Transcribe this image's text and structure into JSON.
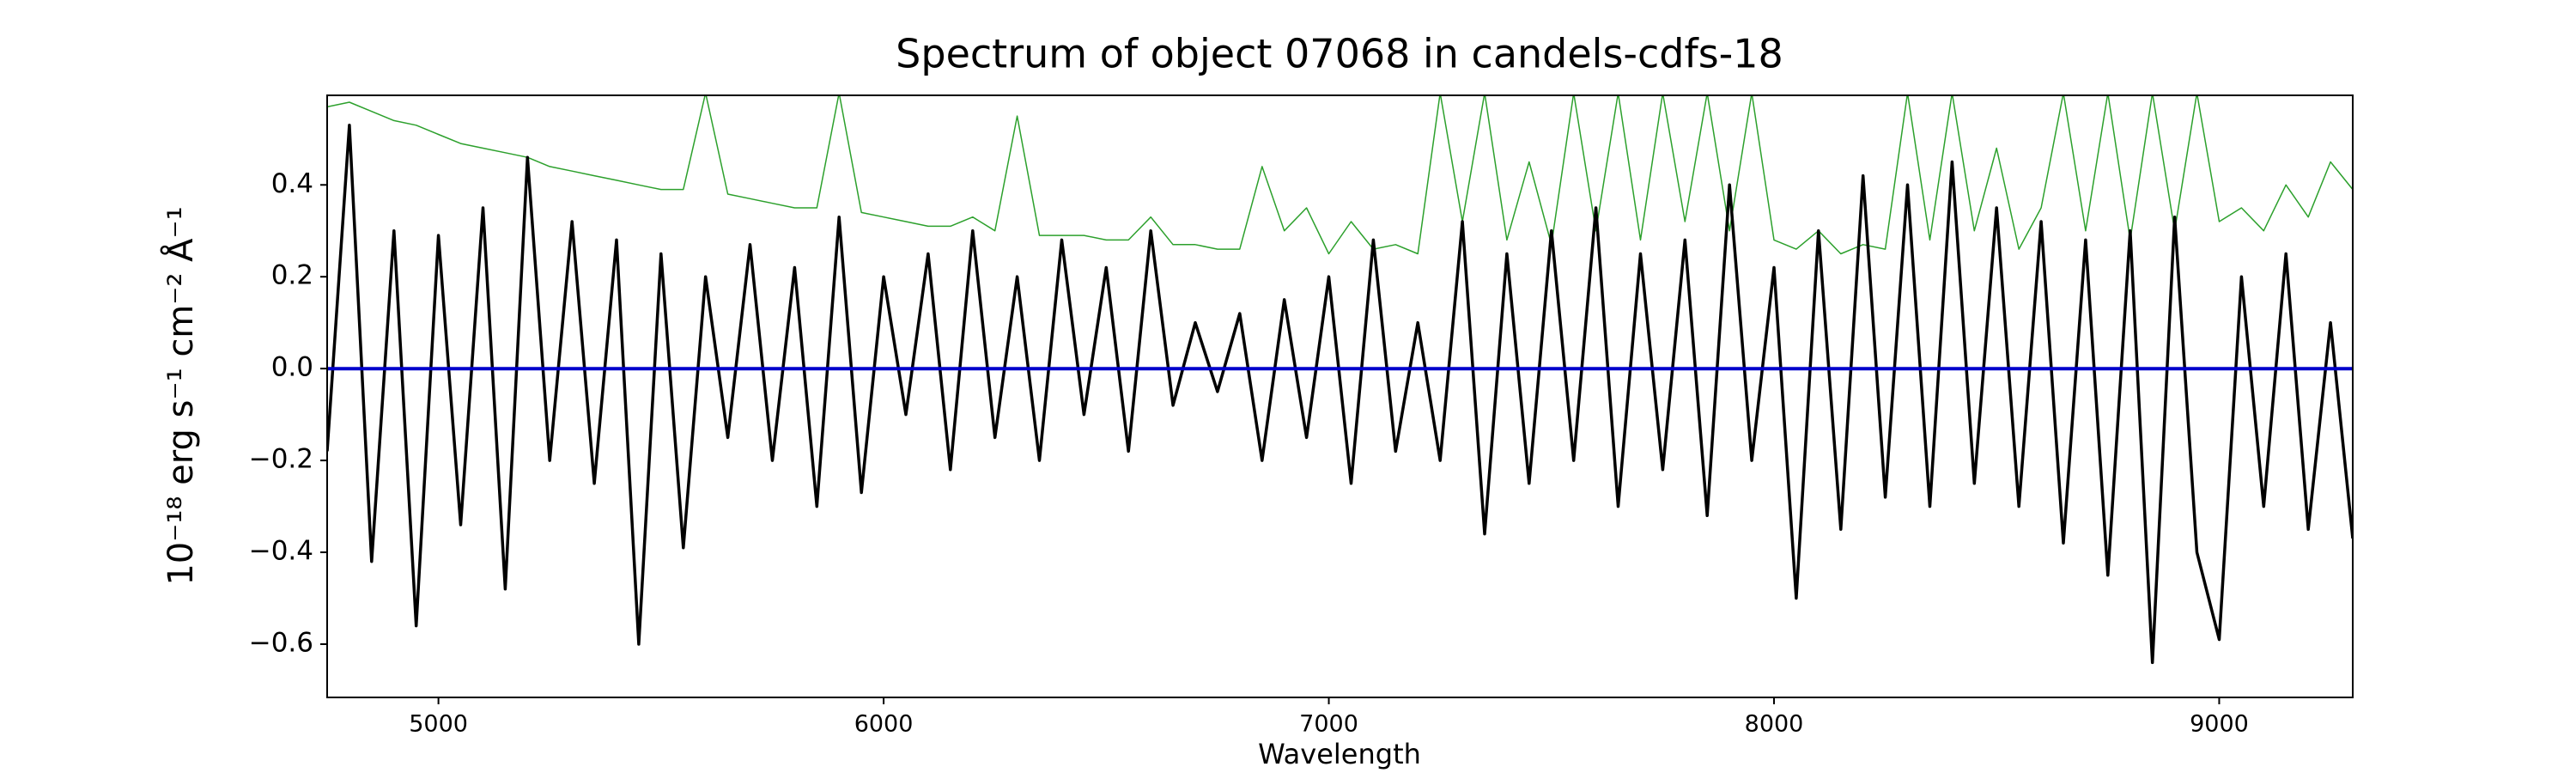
{
  "chart_data": {
    "type": "line",
    "title": "Spectrum of object 07068 in candels-cdfs-18",
    "x_label": "Wavelength",
    "y_label": "10⁻¹⁸ erg s⁻¹ cm⁻² Å⁻¹",
    "xlim": [
      4750,
      9300
    ],
    "ylim": [
      -0.716,
      0.595
    ],
    "xticks": [
      5000,
      6000,
      7000,
      8000,
      9000
    ],
    "yticks": [
      {
        "value": -0.6,
        "label": "−0.6"
      },
      {
        "value": -0.4,
        "label": "−0.4"
      },
      {
        "value": -0.2,
        "label": "−0.2"
      },
      {
        "value": 0,
        "label": "0.0"
      },
      0.2,
      0.4
    ],
    "x": [
      4750,
      4800,
      4850,
      4900,
      4950,
      5000,
      5050,
      5100,
      5150,
      5200,
      5250,
      5300,
      5350,
      5400,
      5450,
      5500,
      5550,
      5600,
      5650,
      5700,
      5750,
      5800,
      5850,
      5900,
      5950,
      6000,
      6050,
      6100,
      6150,
      6200,
      6250,
      6300,
      6350,
      6400,
      6450,
      6500,
      6550,
      6600,
      6650,
      6700,
      6750,
      6800,
      6850,
      6900,
      6950,
      7000,
      7050,
      7100,
      7150,
      7200,
      7250,
      7300,
      7350,
      7400,
      7450,
      7500,
      7550,
      7600,
      7650,
      7700,
      7750,
      7800,
      7850,
      7900,
      7950,
      8000,
      8050,
      8100,
      8150,
      8200,
      8250,
      8300,
      8350,
      8400,
      8450,
      8500,
      8550,
      8600,
      8650,
      8700,
      8750,
      8800,
      8850,
      8900,
      8950,
      9000,
      9050,
      9100,
      9150,
      9200,
      9250,
      9300
    ],
    "series": [
      {
        "color": "#2ca02c",
        "width": 1.5,
        "values": [
          0.57,
          0.58,
          0.56,
          0.54,
          0.53,
          0.51,
          0.49,
          0.48,
          0.47,
          0.46,
          0.44,
          0.43,
          0.42,
          0.41,
          0.4,
          0.39,
          0.39,
          0.6,
          0.38,
          0.37,
          0.36,
          0.35,
          0.35,
          0.6,
          0.34,
          0.33,
          0.32,
          0.31,
          0.31,
          0.33,
          0.3,
          0.55,
          0.29,
          0.29,
          0.29,
          0.28,
          0.28,
          0.33,
          0.27,
          0.27,
          0.26,
          0.26,
          0.44,
          0.3,
          0.35,
          0.25,
          0.32,
          0.26,
          0.27,
          0.25,
          0.6,
          0.32,
          0.6,
          0.28,
          0.45,
          0.27,
          0.6,
          0.3,
          0.6,
          0.28,
          0.6,
          0.32,
          0.6,
          0.3,
          0.6,
          0.28,
          0.26,
          0.3,
          0.25,
          0.27,
          0.26,
          0.6,
          0.28,
          0.6,
          0.3,
          0.48,
          0.26,
          0.35,
          0.6,
          0.3,
          0.6,
          0.28,
          0.6,
          0.3,
          0.6,
          0.32,
          0.35,
          0.3,
          0.4,
          0.33,
          0.45,
          0.39
        ]
      },
      {
        "color": "#000000",
        "width": 3.5,
        "values": [
          -0.18,
          0.53,
          -0.42,
          0.3,
          -0.56,
          0.29,
          -0.34,
          0.35,
          -0.48,
          0.46,
          -0.2,
          0.32,
          -0.25,
          0.28,
          -0.6,
          0.25,
          -0.39,
          0.2,
          -0.15,
          0.27,
          -0.2,
          0.22,
          -0.3,
          0.33,
          -0.27,
          0.2,
          -0.1,
          0.25,
          -0.22,
          0.3,
          -0.15,
          0.2,
          -0.2,
          0.28,
          -0.1,
          0.22,
          -0.18,
          0.3,
          -0.08,
          0.1,
          -0.05,
          0.12,
          -0.2,
          0.15,
          -0.15,
          0.2,
          -0.25,
          0.28,
          -0.18,
          0.1,
          -0.2,
          0.32,
          -0.36,
          0.25,
          -0.25,
          0.3,
          -0.2,
          0.35,
          -0.3,
          0.25,
          -0.22,
          0.28,
          -0.32,
          0.4,
          -0.2,
          0.22,
          -0.5,
          0.3,
          -0.35,
          0.42,
          -0.28,
          0.4,
          -0.3,
          0.45,
          -0.25,
          0.35,
          -0.3,
          0.32,
          -0.38,
          0.28,
          -0.45,
          0.3,
          -0.64,
          0.33,
          -0.4,
          -0.59,
          0.2,
          -0.3,
          0.25,
          -0.35,
          0.1,
          -0.37
        ]
      },
      {
        "color": "#0000cc",
        "width": 4,
        "x": [
          4750,
          9300
        ],
        "values": [
          0,
          0
        ]
      }
    ]
  }
}
